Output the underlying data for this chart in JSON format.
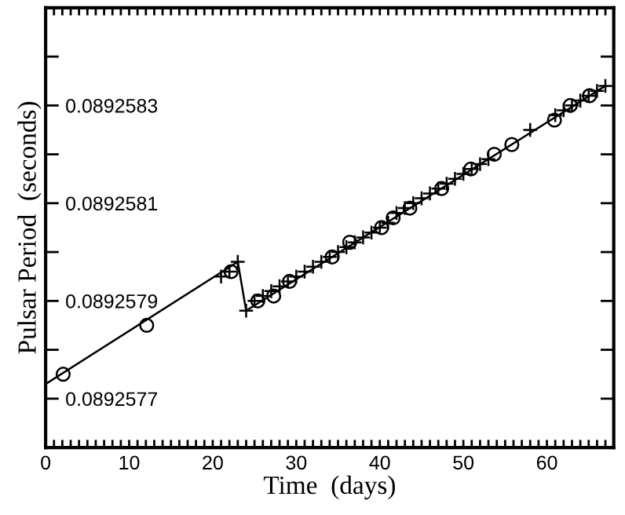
{
  "chart_data": {
    "type": "scatter",
    "xlabel": "Time  (days)",
    "ylabel": "Pulsar Period  (seconds)",
    "xlim": [
      0,
      68
    ],
    "ylim": [
      0.0892576,
      0.0892585
    ],
    "xticks": [
      0,
      {
        "value": 1,
        "label": null
      },
      {
        "value": 2,
        "label": null
      },
      {
        "value": 3,
        "label": null
      },
      {
        "value": 4,
        "label": null
      },
      {
        "value": 5,
        "label": null
      },
      {
        "value": 6,
        "label": null
      },
      {
        "value": 7,
        "label": null
      },
      {
        "value": 8,
        "label": null
      },
      {
        "value": 9,
        "label": null
      },
      10,
      {
        "value": 11,
        "label": null
      },
      {
        "value": 12,
        "label": null
      },
      {
        "value": 13,
        "label": null
      },
      {
        "value": 14,
        "label": null
      },
      {
        "value": 15,
        "label": null
      },
      {
        "value": 16,
        "label": null
      },
      {
        "value": 17,
        "label": null
      },
      {
        "value": 18,
        "label": null
      },
      {
        "value": 19,
        "label": null
      },
      20,
      {
        "value": 21,
        "label": null
      },
      {
        "value": 22,
        "label": null
      },
      {
        "value": 23,
        "label": null
      },
      {
        "value": 24,
        "label": null
      },
      {
        "value": 25,
        "label": null
      },
      {
        "value": 26,
        "label": null
      },
      {
        "value": 27,
        "label": null
      },
      {
        "value": 28,
        "label": null
      },
      {
        "value": 29,
        "label": null
      },
      30,
      {
        "value": 31,
        "label": null
      },
      {
        "value": 32,
        "label": null
      },
      {
        "value": 33,
        "label": null
      },
      {
        "value": 34,
        "label": null
      },
      {
        "value": 35,
        "label": null
      },
      {
        "value": 36,
        "label": null
      },
      {
        "value": 37,
        "label": null
      },
      {
        "value": 38,
        "label": null
      },
      {
        "value": 39,
        "label": null
      },
      40,
      {
        "value": 41,
        "label": null
      },
      {
        "value": 42,
        "label": null
      },
      {
        "value": 43,
        "label": null
      },
      {
        "value": 44,
        "label": null
      },
      {
        "value": 45,
        "label": null
      },
      {
        "value": 46,
        "label": null
      },
      {
        "value": 47,
        "label": null
      },
      {
        "value": 48,
        "label": null
      },
      {
        "value": 49,
        "label": null
      },
      50,
      {
        "value": 51,
        "label": null
      },
      {
        "value": 52,
        "label": null
      },
      {
        "value": 53,
        "label": null
      },
      {
        "value": 54,
        "label": null
      },
      {
        "value": 55,
        "label": null
      },
      {
        "value": 56,
        "label": null
      },
      {
        "value": 57,
        "label": null
      },
      {
        "value": 58,
        "label": null
      },
      {
        "value": 59,
        "label": null
      },
      60,
      {
        "value": 61,
        "label": null
      },
      {
        "value": 62,
        "label": null
      },
      {
        "value": 63,
        "label": null
      },
      {
        "value": 64,
        "label": null
      },
      {
        "value": 65,
        "label": null
      },
      {
        "value": 66,
        "label": null
      },
      {
        "value": 67,
        "label": null
      },
      {
        "value": 68,
        "label": null
      }
    ],
    "yticks": [
      {
        "value": 0.0892576,
        "label": null
      },
      0.0892577,
      {
        "value": 0.0892578,
        "label": null
      },
      0.0892579,
      {
        "value": 0.089258,
        "label": null
      },
      0.0892581,
      {
        "value": 0.0892582,
        "label": null
      },
      0.0892583,
      {
        "value": 0.0892584,
        "label": null
      },
      {
        "value": 0.0892585,
        "label": null
      }
    ],
    "grid": false,
    "legend": false,
    "series": [
      {
        "type": "line",
        "color": "#000000",
        "marker": "none",
        "line_style": "solid",
        "x": [
          0,
          23,
          24,
          67
        ],
        "values": [
          0.08925773,
          0.08925798,
          0.08925788,
          0.08925834
        ]
      },
      {
        "color": "#000000",
        "marker": "circle",
        "x": [
          2.1,
          12.1,
          22.2,
          25.4,
          27.3,
          29.2,
          34.3,
          36.4,
          40.2,
          41.6,
          43.6,
          47.4,
          50.9,
          53.7,
          55.8,
          60.9,
          62.8,
          65.1
        ],
        "values": [
          0.08925775,
          0.08925785,
          0.08925796,
          0.0892579,
          0.08925791,
          0.08925794,
          0.08925799,
          0.08925802,
          0.08925805,
          0.08925807,
          0.08925809,
          0.08925813,
          0.08925817,
          0.0892582,
          0.08925822,
          0.08925827,
          0.0892583,
          0.08925832
        ]
      },
      {
        "color": "#000000",
        "marker": "cross",
        "x": [
          21,
          22,
          23,
          24,
          25,
          26,
          27,
          28,
          29,
          30,
          31,
          32,
          33,
          34,
          35,
          36,
          37,
          38,
          39,
          40,
          41,
          42,
          43,
          44,
          45,
          46,
          47,
          48,
          49,
          50,
          51,
          52,
          53,
          58,
          61,
          62,
          63,
          64,
          65,
          66,
          67
        ],
        "values": [
          0.08925795,
          0.08925796,
          0.08925798,
          0.08925788,
          0.0892579,
          0.08925791,
          0.08925792,
          0.08925793,
          0.08925794,
          0.08925795,
          0.08925796,
          0.08925797,
          0.08925798,
          0.08925799,
          0.089258,
          0.08925801,
          0.08925802,
          0.08925803,
          0.08925804,
          0.08925805,
          0.08925806,
          0.08925808,
          0.08925809,
          0.0892581,
          0.08925811,
          0.08925812,
          0.08925813,
          0.08925814,
          0.08925815,
          0.08925816,
          0.08925817,
          0.08925818,
          0.08925819,
          0.08925825,
          0.08925828,
          0.08925829,
          0.0892583,
          0.08925831,
          0.08925832,
          0.08925833,
          0.08925834
        ]
      }
    ]
  }
}
